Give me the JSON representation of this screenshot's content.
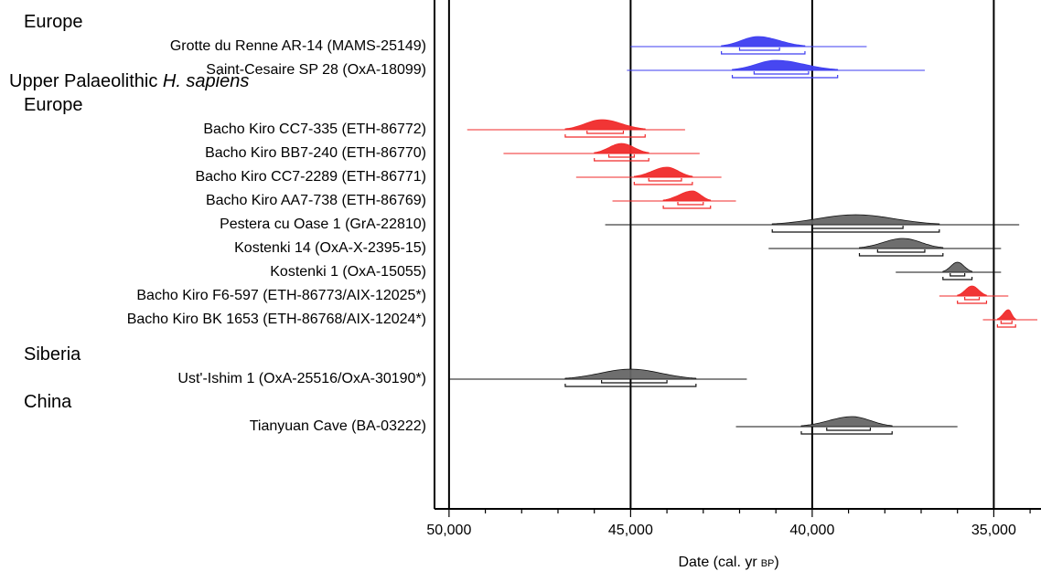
{
  "chart_data": {
    "type": "scatter",
    "xlabel": "Date (cal. yr",
    "xlabel_unit": "BP",
    "xlabel_close": ")",
    "xlim": [
      50400,
      33700
    ],
    "x_reversed": true,
    "xticks": [
      50000,
      45000,
      40000,
      35000
    ],
    "xtick_labels": [
      "50,000",
      "45,000",
      "40,000",
      "35,000"
    ],
    "vlines": [
      50000,
      45000,
      40000,
      35000
    ],
    "colors": {
      "blue": "#3d3df0",
      "red": "#f02a2a",
      "black": "#111111",
      "fill_black": "#666666"
    },
    "groups": [
      {
        "label": "Europe",
        "row": 0,
        "indent": 1
      },
      {
        "label": "Upper Palaeolithic ",
        "label_italic": "H. sapiens",
        "row": 2.5,
        "indent": 0
      },
      {
        "label": "Europe",
        "row": 3.5,
        "indent": 1
      },
      {
        "label": "Siberia",
        "row": 14,
        "indent": 1
      },
      {
        "label": "China",
        "row": 16,
        "indent": 1
      }
    ],
    "samples": [
      {
        "label": "Grotte du Renne AR-14 (MAMS-25149)",
        "color": "blue",
        "row": 1,
        "peak": 41500,
        "range_full": [
          45000,
          38500
        ],
        "range_95": [
          42500,
          40200
        ],
        "range_68": [
          42000,
          40900
        ]
      },
      {
        "label": "Saint-Cesaire SP 28 (OxA-18099)",
        "color": "blue",
        "row": 2,
        "peak": 41000,
        "range_full": [
          45100,
          36900
        ],
        "range_95": [
          42200,
          39300
        ],
        "range_68": [
          41600,
          40100
        ]
      },
      {
        "label": "Bacho Kiro CC7-335 (ETH-86772)",
        "color": "red",
        "row": 4.5,
        "peak": 45800,
        "range_full": [
          49500,
          43500
        ],
        "range_95": [
          46800,
          44600
        ],
        "range_68": [
          46200,
          45200
        ]
      },
      {
        "label": "Bacho Kiro BB7-240 (ETH-86770)",
        "color": "red",
        "row": 5.5,
        "peak": 45250,
        "range_full": [
          48500,
          43100
        ],
        "range_95": [
          46000,
          44500
        ],
        "range_68": [
          45600,
          44900
        ]
      },
      {
        "label": "Bacho Kiro CC7-2289 (ETH-86771)",
        "color": "red",
        "row": 6.5,
        "peak": 44000,
        "range_full": [
          46500,
          42500
        ],
        "range_95": [
          44900,
          43300
        ],
        "range_68": [
          44500,
          43600
        ]
      },
      {
        "label": "Bacho Kiro AA7-738 (ETH-86769)",
        "color": "red",
        "row": 7.5,
        "peak": 43300,
        "range_full": [
          45500,
          42100
        ],
        "range_95": [
          44100,
          42800
        ],
        "range_68": [
          43700,
          43000
        ]
      },
      {
        "label": "Pestera cu Oase 1 (GrA-22810)",
        "color": "black",
        "row": 8.5,
        "peak": 38800,
        "range_full": [
          45700,
          34300
        ],
        "range_95": [
          41100,
          36500
        ],
        "range_68": [
          40000,
          37500
        ]
      },
      {
        "label": "Kostenki 14 (OxA-X-2395-15)",
        "color": "black",
        "row": 9.5,
        "peak": 37500,
        "range_full": [
          41200,
          34800
        ],
        "range_95": [
          38700,
          36400
        ],
        "range_68": [
          38200,
          36900
        ]
      },
      {
        "label": "Kostenki 1 (OxA-15055)",
        "color": "black",
        "row": 10.5,
        "peak": 36000,
        "range_full": [
          37700,
          34800
        ],
        "range_95": [
          36400,
          35600
        ],
        "range_68": [
          36200,
          35800
        ]
      },
      {
        "label": "Bacho Kiro F6-597 (ETH-86773/AIX-12025",
        "label_mark": "*)",
        "color": "red",
        "row": 11.5,
        "peak": 35600,
        "range_full": [
          36500,
          34600
        ],
        "range_95": [
          36000,
          35200
        ],
        "range_68": [
          35800,
          35400
        ]
      },
      {
        "label": "Bacho Kiro BK 1653 (ETH-86768/AIX-12024",
        "label_mark": "*)",
        "color": "red",
        "row": 12.5,
        "peak": 34600,
        "range_full": [
          35300,
          33800
        ],
        "range_95": [
          34900,
          34400
        ],
        "range_68": [
          34800,
          34500
        ]
      },
      {
        "label": "Ust'-Ishim 1 (OxA-25516/OxA-30190",
        "label_mark": "*)",
        "color": "black",
        "row": 15,
        "peak": 45000,
        "range_full": [
          50000,
          41800
        ],
        "range_95": [
          46800,
          43200
        ],
        "range_68": [
          45800,
          44000
        ]
      },
      {
        "label": "Tianyuan Cave (BA-03222)",
        "color": "black",
        "row": 17,
        "peak": 38900,
        "range_full": [
          42100,
          36000
        ],
        "range_95": [
          40300,
          37800
        ],
        "range_68": [
          39600,
          38400
        ]
      }
    ]
  }
}
